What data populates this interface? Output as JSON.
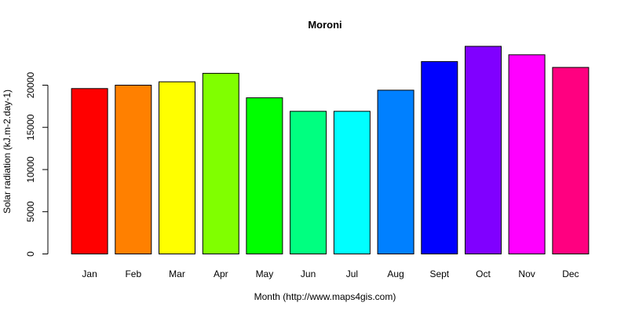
{
  "chart_data": {
    "type": "bar",
    "title": "Moroni",
    "xlabel": "Month (http://www.maps4gis.com)",
    "ylabel": "Solar radiation (kJ.m-2.day-1)",
    "categories": [
      "Jan",
      "Feb",
      "Mar",
      "Apr",
      "May",
      "Jun",
      "Jul",
      "Aug",
      "Sept",
      "Oct",
      "Nov",
      "Dec"
    ],
    "values": [
      19600,
      20000,
      20400,
      21400,
      18500,
      16900,
      16900,
      19400,
      22800,
      24600,
      23600,
      22100
    ],
    "colors": [
      "#ff0000",
      "#ff8000",
      "#ffff00",
      "#80ff00",
      "#00ff00",
      "#00ff80",
      "#00ffff",
      "#0080ff",
      "#0000ff",
      "#8000ff",
      "#ff00ff",
      "#ff0080"
    ],
    "ylim": [
      0,
      24600
    ],
    "yticks": [
      0,
      5000,
      10000,
      15000,
      20000
    ],
    "ytick_labels": [
      "0",
      "5000",
      "10000",
      "15000",
      "20000"
    ],
    "grid": false,
    "legend": "none"
  }
}
